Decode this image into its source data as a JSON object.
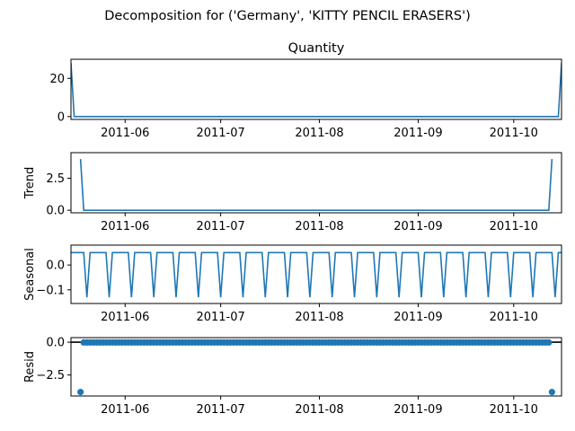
{
  "figure": {
    "suptitle": "Decomposition for ('Germany', 'KITTY PENCIL ERASERS')",
    "x_ticks": [
      "2011-06-01",
      "2011-07-01",
      "2011-08-01",
      "2011-09-01",
      "2011-10-01"
    ],
    "x_tick_labels": [
      "2011-06",
      "2011-07",
      "2011-08",
      "2011-09",
      "2011-10"
    ],
    "line_color": "#1f77b4",
    "zero_line_color": "#000000"
  },
  "chart_data": [
    {
      "type": "line",
      "title": "Quantity",
      "ylabel": "",
      "xlim": [
        "2011-05-15",
        "2011-10-16"
      ],
      "ylim": [
        -1.5,
        30
      ],
      "yticks": [
        0,
        20
      ],
      "ytick_labels": [
        "0",
        "20"
      ],
      "series": [
        {
          "x": [
            "2011-05-15",
            "2011-05-16",
            "2011-10-15",
            "2011-10-16"
          ],
          "values": [
            28,
            0,
            0,
            28
          ]
        }
      ]
    },
    {
      "type": "line",
      "title": "",
      "ylabel": "Trend",
      "xlim": [
        "2011-05-15",
        "2011-10-16"
      ],
      "ylim": [
        -0.2,
        4.5
      ],
      "yticks": [
        0,
        2.5
      ],
      "ytick_labels": [
        "0.0",
        "2.5"
      ],
      "series": [
        {
          "x": [
            "2011-05-18",
            "2011-05-19",
            "2011-10-12",
            "2011-10-13"
          ],
          "values": [
            4.0,
            0.0,
            0.0,
            4.0
          ]
        }
      ]
    },
    {
      "type": "line",
      "title": "",
      "ylabel": "Seasonal",
      "xlim": [
        "2011-05-15",
        "2011-10-16"
      ],
      "ylim": [
        -0.155,
        0.08
      ],
      "yticks": [
        0,
        -0.1
      ],
      "ytick_labels": [
        "0.0",
        "−0.1"
      ],
      "seasonal_pattern": [
        0.05,
        0.05,
        0.05,
        0.05,
        0.05,
        -0.13,
        0.05
      ],
      "start": "2011-05-15",
      "end": "2011-10-16"
    },
    {
      "type": "scatter",
      "title": "",
      "ylabel": "Resid",
      "xlim": [
        "2011-05-15",
        "2011-10-16"
      ],
      "ylim": [
        -4.1,
        0.35
      ],
      "yticks": [
        0,
        -2.5
      ],
      "ytick_labels": [
        "0.0",
        "−2.5"
      ],
      "baseline": 0,
      "start": "2011-05-18",
      "end": "2011-10-13",
      "outliers": [
        {
          "x": "2011-05-18",
          "y": -3.8
        },
        {
          "x": "2011-10-13",
          "y": -3.8
        }
      ],
      "value": -0.02
    }
  ]
}
